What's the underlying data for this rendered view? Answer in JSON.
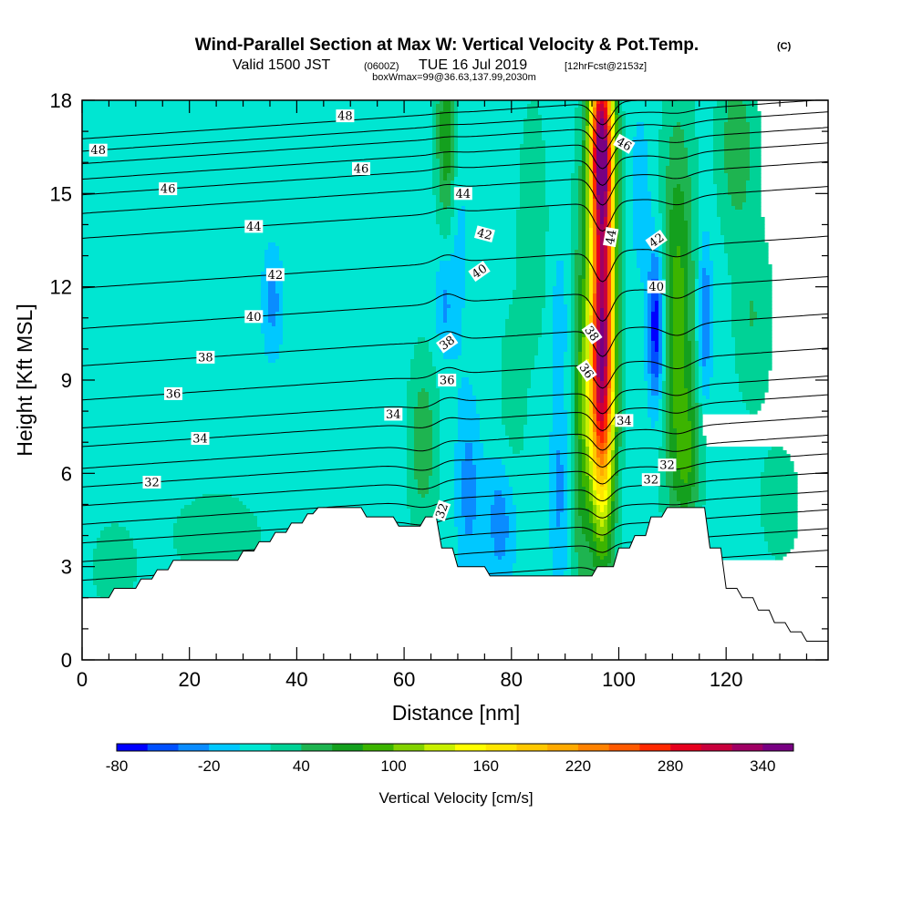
{
  "header": {
    "title": "Wind-Parallel Section at Max W: Vertical Velocity & Pot.Temp.",
    "copyright": "(C)",
    "valid_prefix": "Valid 1500 JST",
    "valid_utc": "(0600Z)",
    "valid_date": "TUE 16 Jul 2019",
    "forecast": "[12hrFcst@2153z]",
    "box": "boxWmax=99@36.63,137.99,2030m"
  },
  "chart_data": {
    "type": "heatmap",
    "xlabel": "Distance [nm]",
    "ylabel": "Height [Kft MSL]",
    "xlim": [
      0,
      139
    ],
    "ylim": [
      0,
      18
    ],
    "x_ticks": [
      0,
      20,
      40,
      60,
      80,
      100,
      120
    ],
    "y_ticks": [
      0,
      3,
      6,
      9,
      12,
      15,
      18
    ],
    "background_w": 10,
    "terrain": [
      [
        0,
        2.0
      ],
      [
        5,
        2.0
      ],
      [
        6,
        2.3
      ],
      [
        10,
        2.3
      ],
      [
        11,
        2.6
      ],
      [
        13,
        2.6
      ],
      [
        14,
        2.9
      ],
      [
        16,
        2.9
      ],
      [
        17,
        3.2
      ],
      [
        29,
        3.2
      ],
      [
        30,
        3.5
      ],
      [
        32,
        3.5
      ],
      [
        33,
        3.8
      ],
      [
        35,
        3.8
      ],
      [
        36,
        4.1
      ],
      [
        38,
        4.1
      ],
      [
        39,
        4.4
      ],
      [
        41,
        4.4
      ],
      [
        42,
        4.7
      ],
      [
        43,
        4.7
      ],
      [
        44,
        4.9
      ],
      [
        52,
        4.9
      ],
      [
        53,
        4.6
      ],
      [
        58,
        4.6
      ],
      [
        59,
        4.3
      ],
      [
        63,
        4.3
      ],
      [
        64,
        4.6
      ],
      [
        66,
        4.6
      ],
      [
        67,
        3.6
      ],
      [
        69,
        3.6
      ],
      [
        70,
        3.0
      ],
      [
        75,
        3.0
      ],
      [
        76,
        2.7
      ],
      [
        95,
        2.7
      ],
      [
        96,
        3.0
      ],
      [
        99,
        3.0
      ],
      [
        100,
        3.6
      ],
      [
        102,
        3.6
      ],
      [
        103,
        4.0
      ],
      [
        105,
        4.0
      ],
      [
        106,
        4.6
      ],
      [
        108,
        4.6
      ],
      [
        109,
        4.9
      ],
      [
        116,
        4.9
      ],
      [
        117,
        3.6
      ],
      [
        119,
        3.6
      ],
      [
        120,
        2.3
      ],
      [
        122,
        2.3
      ],
      [
        123,
        2.0
      ],
      [
        125,
        2.0
      ],
      [
        126,
        1.6
      ],
      [
        128,
        1.6
      ],
      [
        129,
        1.2
      ],
      [
        131,
        1.2
      ],
      [
        132,
        0.9
      ],
      [
        134,
        0.9
      ],
      [
        135,
        0.6
      ],
      [
        139,
        0.6
      ]
    ],
    "w_features": [
      {
        "x": 97.0,
        "y": 13.0,
        "sx": 1.6,
        "sy": 5.5,
        "w": 280
      },
      {
        "x": 96.5,
        "y": 16.5,
        "sx": 1.5,
        "sy": 1.6,
        "w": 150
      },
      {
        "x": 96.5,
        "y": 8.5,
        "sx": 1.8,
        "sy": 2.5,
        "w": 120
      },
      {
        "x": 111.0,
        "y": 11.0,
        "sx": 2.2,
        "sy": 4.5,
        "w": 80
      },
      {
        "x": 113.0,
        "y": 6.5,
        "sx": 1.8,
        "sy": 1.5,
        "w": 45
      },
      {
        "x": 107.0,
        "y": 10.7,
        "sx": 1.1,
        "sy": 1.8,
        "w": -95
      },
      {
        "x": 116.0,
        "y": 11.0,
        "sx": 0.9,
        "sy": 1.8,
        "w": -55
      },
      {
        "x": 93.0,
        "y": 8.0,
        "sx": 1.4,
        "sy": 5.0,
        "w": 55
      },
      {
        "x": 89.0,
        "y": 5.5,
        "sx": 1.2,
        "sy": 2.5,
        "w": -35
      },
      {
        "x": 89.0,
        "y": 11.0,
        "sx": 1.0,
        "sy": 1.5,
        "w": -25
      },
      {
        "x": 68.0,
        "y": 17.0,
        "sx": 1.4,
        "sy": 2.2,
        "w": 70
      },
      {
        "x": 67.5,
        "y": 11.5,
        "sx": 1.2,
        "sy": 1.2,
        "w": -35
      },
      {
        "x": 72.0,
        "y": 5.5,
        "sx": 1.5,
        "sy": 2.0,
        "w": -40
      },
      {
        "x": 78.0,
        "y": 4.5,
        "sx": 2.0,
        "sy": 1.5,
        "w": -45
      },
      {
        "x": 63.5,
        "y": 7.0,
        "sx": 2.0,
        "sy": 2.0,
        "w": 45
      },
      {
        "x": 70.0,
        "y": 14.0,
        "sx": 1.2,
        "sy": 3.0,
        "w": -20
      },
      {
        "x": 35.5,
        "y": 11.5,
        "sx": 1.3,
        "sy": 1.2,
        "w": -38
      },
      {
        "x": 122.0,
        "y": 16.5,
        "sx": 2.5,
        "sy": 2.0,
        "w": 45
      },
      {
        "x": 125.0,
        "y": 11.0,
        "sx": 2.5,
        "sy": 2.0,
        "w": 30
      },
      {
        "x": 15.0,
        "y": 11.0,
        "sx": 7.0,
        "sy": 2.5,
        "w": -8
      },
      {
        "x": 25.0,
        "y": 4.0,
        "sx": 6.0,
        "sy": 1.0,
        "w": 25
      },
      {
        "x": 6.0,
        "y": 3.0,
        "sx": 3.0,
        "sy": 1.0,
        "w": 25
      },
      {
        "x": 50.0,
        "y": 8.0,
        "sx": 6.0,
        "sy": 3.0,
        "w": -6
      },
      {
        "x": 84.0,
        "y": 14.0,
        "sx": 2.0,
        "sy": 3.0,
        "w": 25
      },
      {
        "x": 104.0,
        "y": 15.0,
        "sx": 1.5,
        "sy": 2.0,
        "w": -20
      },
      {
        "x": 80.0,
        "y": 8.0,
        "sx": 2.0,
        "sy": 2.5,
        "w": 20
      },
      {
        "x": 130.0,
        "y": 5.0,
        "sx": 3.0,
        "sy": 1.5,
        "w": 20
      }
    ],
    "theta_contours": [
      {
        "y0": 2.7,
        "label": "",
        "lx": null
      },
      {
        "y0": 3.4,
        "label": "",
        "lx": null
      },
      {
        "y0": 4.0,
        "label": "",
        "lx": null
      },
      {
        "y0": 4.6,
        "label": "",
        "lx": null
      },
      {
        "y0": 5.2,
        "label": "",
        "lx": null
      },
      {
        "y0": 5.8,
        "label": "32",
        "lx": 109
      },
      {
        "y0": 6.4,
        "label": "32",
        "lx": 13
      },
      {
        "y0": 7.0,
        "label": "",
        "lx": null
      },
      {
        "y0": 7.7,
        "label": "34",
        "lx": 22
      },
      {
        "y0": 8.3,
        "label": "",
        "lx": null
      },
      {
        "y0": 9.2,
        "label": "36",
        "lx": 17
      },
      {
        "y0": 10.3,
        "label": "38",
        "lx": 23
      },
      {
        "y0": 11.5,
        "label": "40",
        "lx": 32
      },
      {
        "y0": 12.8,
        "label": "42",
        "lx": 36
      },
      {
        "y0": 14.4,
        "label": "44",
        "lx": 32
      },
      {
        "y0": 15.2,
        "label": "",
        "lx": null
      },
      {
        "y0": 15.8,
        "label": "46",
        "lx": 16
      },
      {
        "y0": 16.3,
        "label": "",
        "lx": null
      },
      {
        "y0": 16.8,
        "label": "",
        "lx": null
      },
      {
        "y0": 17.2,
        "label": "48",
        "lx": 3
      },
      {
        "y0": 17.6,
        "label": "",
        "lx": null
      }
    ],
    "theta_labels": [
      {
        "text": "48",
        "x": 49,
        "y": 17.5,
        "rot": 0
      },
      {
        "text": "46",
        "x": 52,
        "y": 15.8,
        "rot": 0
      },
      {
        "text": "44",
        "x": 71,
        "y": 15.0,
        "rot": 0
      },
      {
        "text": "42",
        "x": 75,
        "y": 13.7,
        "rot": 15
      },
      {
        "text": "40",
        "x": 74,
        "y": 12.5,
        "rot": -35
      },
      {
        "text": "38",
        "x": 68,
        "y": 10.2,
        "rot": -35
      },
      {
        "text": "36",
        "x": 68,
        "y": 9.0,
        "rot": 0
      },
      {
        "text": "34",
        "x": 58,
        "y": 7.9,
        "rot": 0
      },
      {
        "text": "32",
        "x": 67,
        "y": 4.8,
        "rot": -70
      },
      {
        "text": "46",
        "x": 101,
        "y": 16.6,
        "rot": 30
      },
      {
        "text": "44",
        "x": 98.5,
        "y": 13.6,
        "rot": -80
      },
      {
        "text": "42",
        "x": 107,
        "y": 13.5,
        "rot": -35
      },
      {
        "text": "40",
        "x": 107,
        "y": 12.0,
        "rot": 0
      },
      {
        "text": "38",
        "x": 95,
        "y": 10.5,
        "rot": 55
      },
      {
        "text": "36",
        "x": 94,
        "y": 9.3,
        "rot": 55
      },
      {
        "text": "34",
        "x": 101,
        "y": 7.7,
        "rot": 0
      },
      {
        "text": "32",
        "x": 106,
        "y": 5.8,
        "rot": 0
      }
    ],
    "legend": {
      "label": "Vertical Velocity [cm/s]",
      "levels": [
        -80,
        -60,
        -40,
        -20,
        0,
        20,
        40,
        60,
        80,
        100,
        120,
        140,
        160,
        180,
        200,
        220,
        240,
        260,
        280,
        300,
        320,
        340,
        360
      ],
      "tick_labels": [
        "-80",
        "-20",
        "40",
        "100",
        "160",
        "220",
        "280",
        "340"
      ],
      "tick_values": [
        -80,
        -20,
        40,
        100,
        160,
        220,
        280,
        340
      ],
      "colors": [
        "#0000ff",
        "#0050ff",
        "#0a8cff",
        "#00c8ff",
        "#00e6d2",
        "#00d296",
        "#1eb450",
        "#14a01e",
        "#3cb400",
        "#82d200",
        "#c8f000",
        "#ffff00",
        "#ffe600",
        "#ffc800",
        "#ffaa00",
        "#ff8200",
        "#ff5a00",
        "#ff2800",
        "#e6001e",
        "#c8003c",
        "#a00064",
        "#780082"
      ]
    }
  }
}
